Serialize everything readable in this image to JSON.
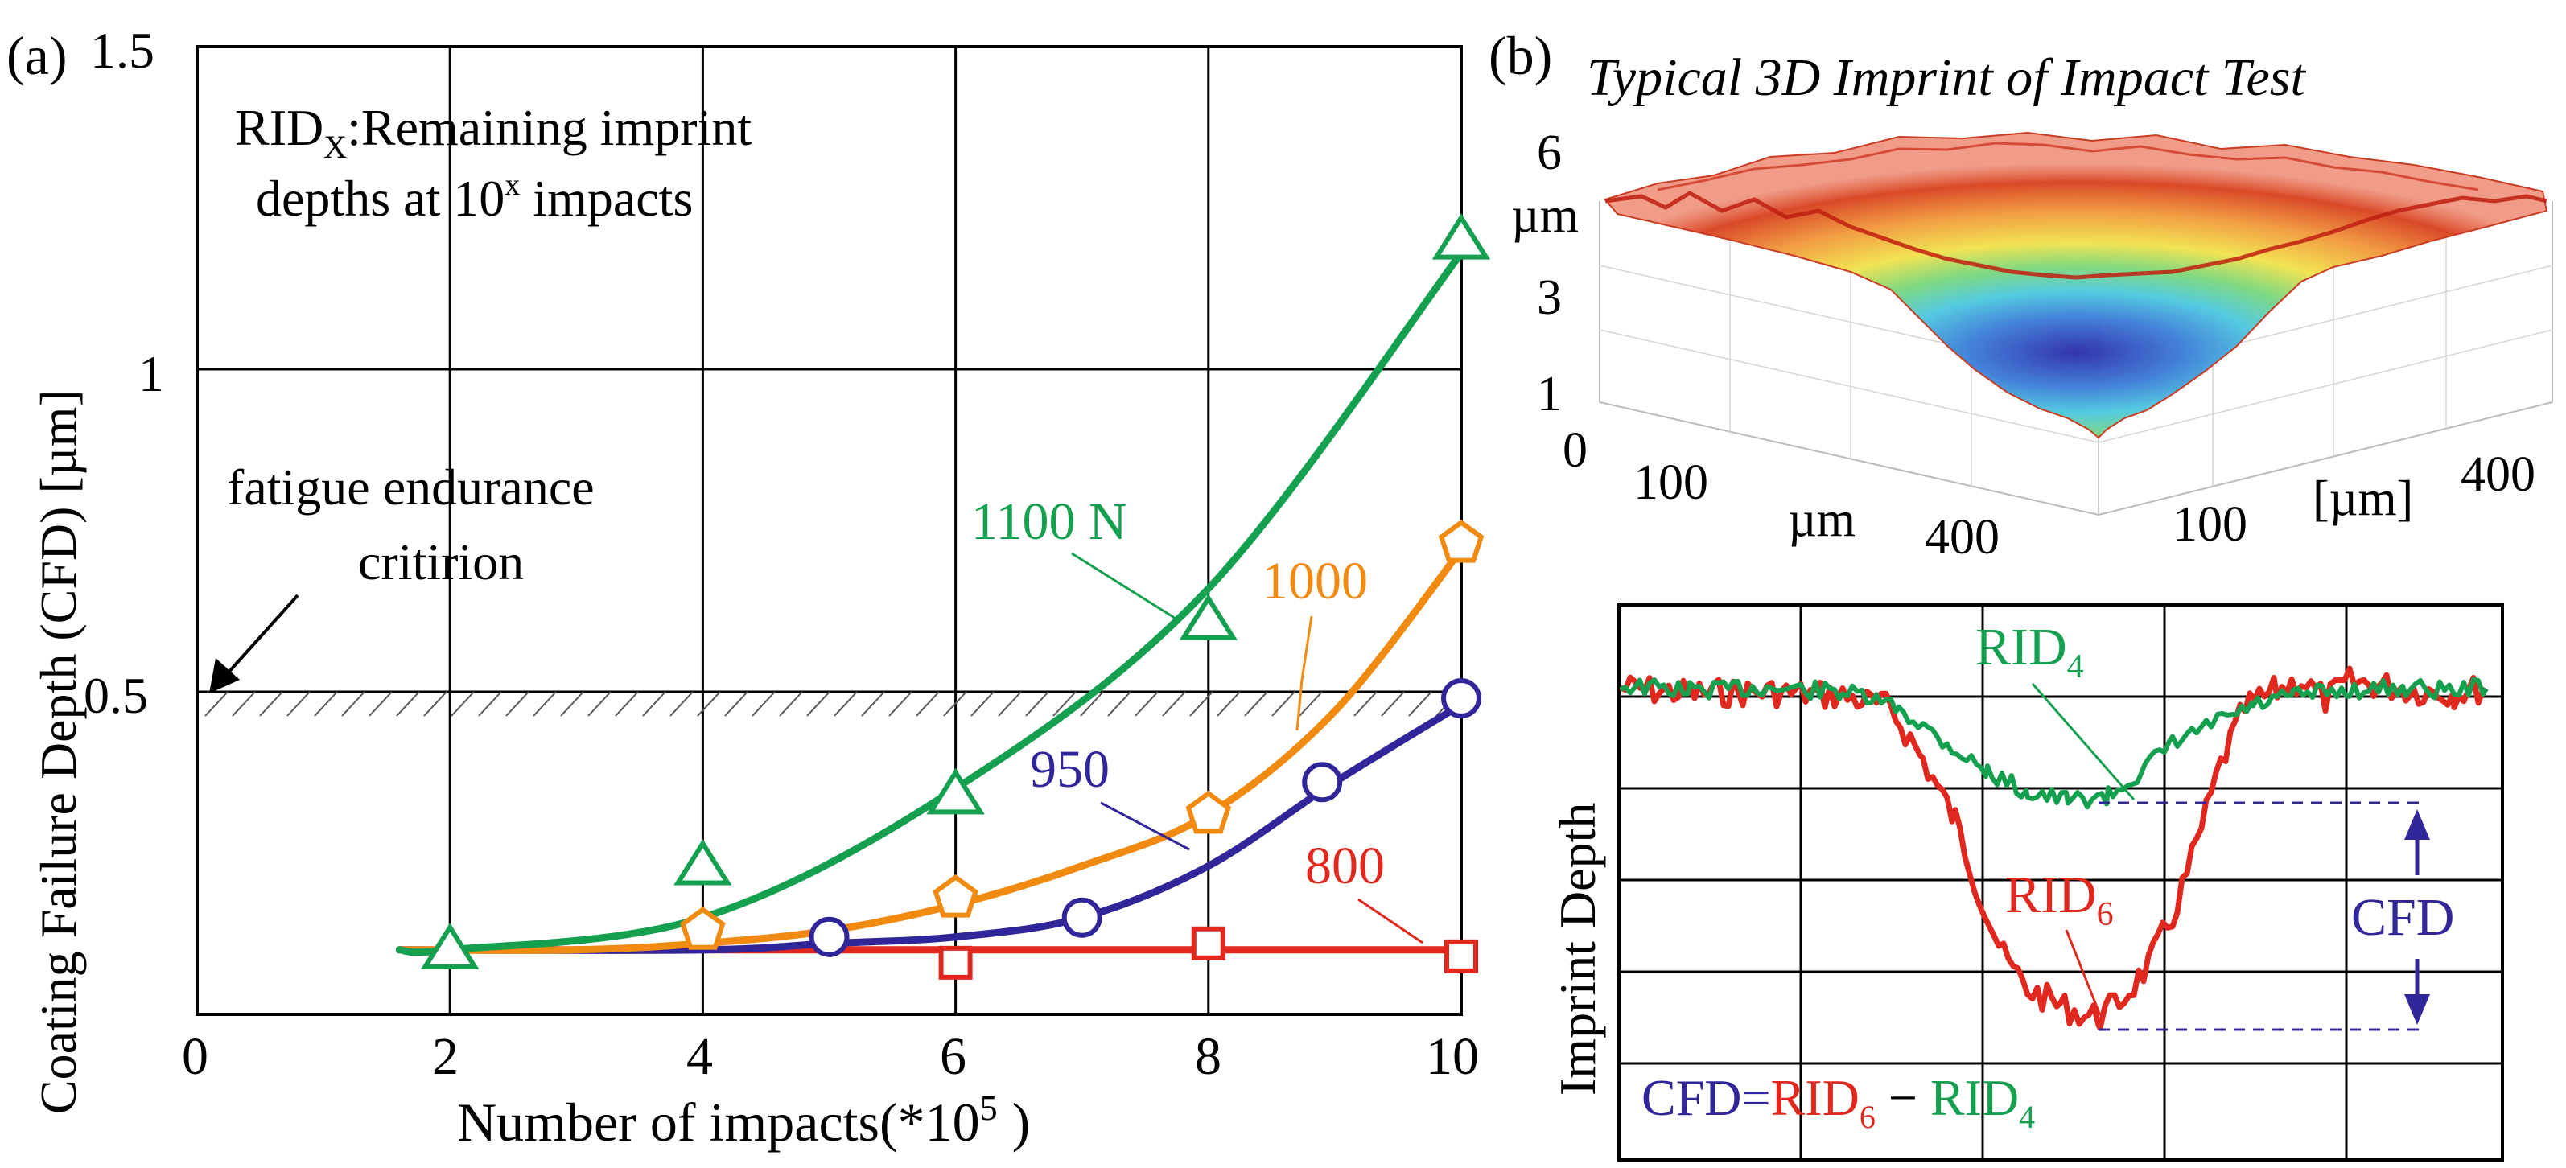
{
  "figure": {
    "panel_a_label": "(a)",
    "panel_b_label": "(b)"
  },
  "colors": {
    "green": "#15a050",
    "orange": "#f08a10",
    "blue": "#30269a",
    "red": "#e0281e",
    "axis": "#000000"
  },
  "chart_data": [
    {
      "type": "line",
      "panel": "(a)",
      "title": "",
      "xlabel": "Number of impacts(*10",
      "xlabel_sup": "5",
      "xlabel_close": ")",
      "ylabel": "Coating Failure Depth (CFD) [µm]",
      "xlim": [
        0,
        10
      ],
      "ylim": [
        0,
        1.5
      ],
      "xticks": [
        0,
        2,
        4,
        6,
        8,
        10
      ],
      "yticks": [
        0.5,
        1,
        1.5
      ],
      "ytick_labels": [
        "0.5",
        "1",
        "1.5"
      ],
      "grid": true,
      "threshold": {
        "value": 0.5,
        "label_line1": "fatigue endurance",
        "label_line2": "critirion"
      },
      "legend_note": {
        "line1_prefix": "RID",
        "line1_sub": "X",
        "line1_suffix": ":Remaining imprint",
        "line2_prefix": "depths at 10",
        "line2_sup": "x",
        "line2_suffix": " impacts"
      },
      "series": [
        {
          "name": "1100 N",
          "color": "#15a050",
          "marker": "triangle",
          "points": [
            [
              2,
              0.1
            ],
            [
              4,
              0.23
            ],
            [
              6,
              0.34
            ],
            [
              8,
              0.61
            ],
            [
              10,
              1.2
            ]
          ],
          "curve": [
            [
              1.6,
              0.1
            ],
            [
              2,
              0.1
            ],
            [
              4,
              0.15
            ],
            [
              6,
              0.35
            ],
            [
              8,
              0.66
            ],
            [
              10,
              1.18
            ]
          ]
        },
        {
          "name": "1000",
          "color": "#f08a10",
          "marker": "pentagon",
          "points": [
            [
              4,
              0.13
            ],
            [
              6,
              0.18
            ],
            [
              8,
              0.31
            ],
            [
              10,
              0.73
            ]
          ],
          "curve": [
            [
              1.6,
              0.1
            ],
            [
              3,
              0.1
            ],
            [
              4,
              0.11
            ],
            [
              5,
              0.13
            ],
            [
              6,
              0.17
            ],
            [
              7,
              0.23
            ],
            [
              8,
              0.31
            ],
            [
              9,
              0.47
            ],
            [
              10,
              0.72
            ]
          ]
        },
        {
          "name": "950",
          "color": "#30269a",
          "marker": "circle",
          "points": [
            [
              5,
              0.12
            ],
            [
              7,
              0.15
            ],
            [
              8.9,
              0.36
            ],
            [
              10,
              0.49
            ]
          ],
          "curve": [
            [
              1.6,
              0.1
            ],
            [
              4,
              0.1
            ],
            [
              5,
              0.11
            ],
            [
              6,
              0.12
            ],
            [
              7,
              0.15
            ],
            [
              8,
              0.23
            ],
            [
              9,
              0.36
            ],
            [
              10,
              0.48
            ]
          ]
        },
        {
          "name": "800",
          "color": "#e0281e",
          "marker": "square",
          "points": [
            [
              6,
              0.08
            ],
            [
              8,
              0.11
            ],
            [
              10,
              0.09
            ]
          ],
          "curve": [
            [
              1.6,
              0.1
            ],
            [
              10,
              0.1
            ]
          ]
        }
      ]
    },
    {
      "type": "surface3d",
      "panel": "(b)",
      "title": "Typical 3D Imprint of Impact Test",
      "z_ticks": [
        "6",
        "3",
        "1",
        "0"
      ],
      "z_unit": "µm",
      "x_ticks": [
        "100",
        "400"
      ],
      "x_unit": "µm",
      "y_ticks": [
        "100",
        "400"
      ],
      "y_unit": "[µm]"
    },
    {
      "type": "line",
      "panel": "(b) profile",
      "ylabel": "Imprint Depth",
      "series_labels": {
        "rid4": "RID",
        "rid4_sub": "4",
        "rid6": "RID",
        "rid6_sub": "6",
        "cfd": "CFD"
      },
      "formula": {
        "lhs": "CFD=",
        "rid6": "RID",
        "rid6_sub": "6",
        "minus": " − ",
        "rid4": "RID",
        "rid4_sub": "4"
      }
    }
  ]
}
